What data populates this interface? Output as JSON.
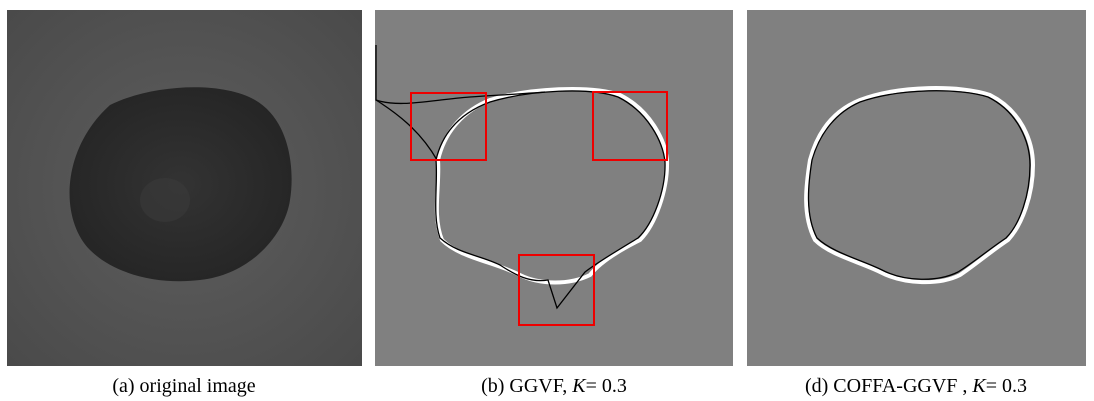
{
  "figure": {
    "panels": [
      {
        "caption": [
          "(a) original image"
        ]
      },
      {
        "caption": [
          "(b) GGVF, ",
          "K",
          "= 0.3"
        ]
      },
      {
        "caption": [
          "(d) COFFA-GGVF , ",
          "K",
          "= 0.3"
        ]
      }
    ]
  }
}
